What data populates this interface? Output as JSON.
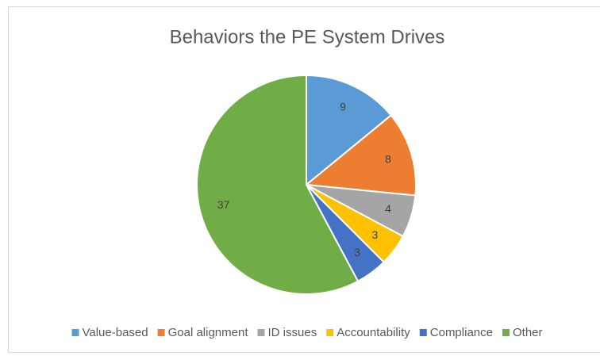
{
  "chart_data": {
    "type": "pie",
    "title": "Behaviors the PE System Drives",
    "categories": [
      "Value-based",
      "Goal alignment",
      "ID issues",
      "Accountability",
      "Compliance",
      "Other"
    ],
    "values": [
      9,
      8,
      4,
      3,
      3,
      37
    ],
    "colors": [
      "#5b9bd5",
      "#ed7d31",
      "#a5a5a5",
      "#ffc000",
      "#4472c4",
      "#70ad47"
    ],
    "legend": "bottom"
  }
}
